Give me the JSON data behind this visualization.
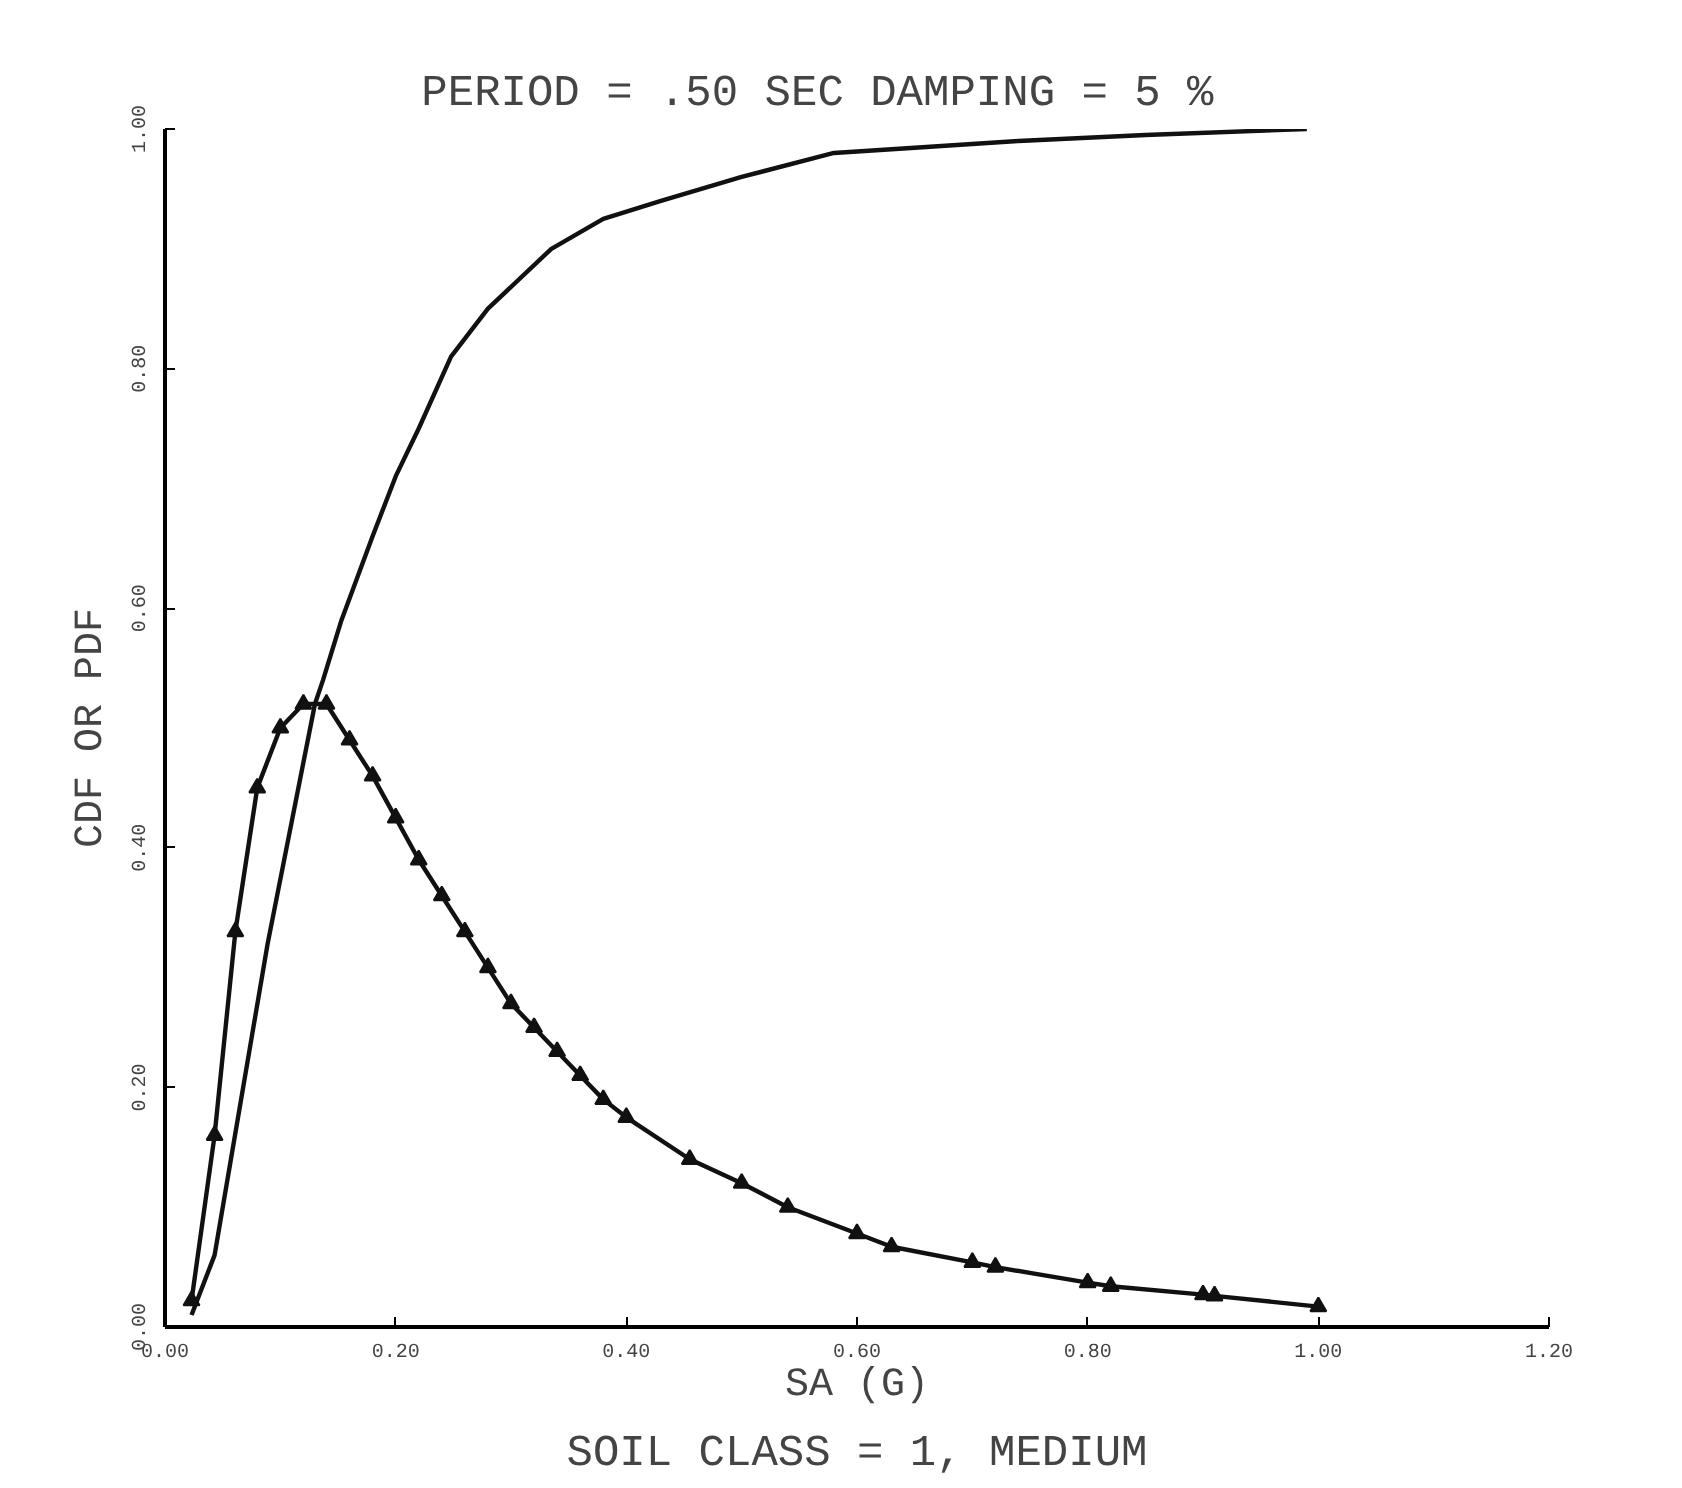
{
  "chart_data": {
    "type": "line",
    "title": "PERIOD = .50 SEC   DAMPING =  5 %",
    "xlabel": "SA (G)",
    "ylabel": "CDF OR PDF",
    "annotations": [
      "SOIL CLASS = 1, MEDIUM"
    ],
    "xlim": [
      0,
      1.2
    ],
    "ylim": [
      0,
      1
    ],
    "xticks": [
      {
        "value": 0,
        "label": "0.00"
      },
      {
        "value": 0.2,
        "label": "0.20"
      },
      {
        "value": 0.4,
        "label": "0.40"
      },
      {
        "value": 0.6,
        "label": "0.60"
      },
      {
        "value": 0.8,
        "label": "0.80"
      },
      {
        "value": 1.0,
        "label": "1.00"
      },
      {
        "value": 1.2,
        "label": "1.20"
      }
    ],
    "yticks": [
      {
        "value": 0,
        "label": "0.00"
      },
      {
        "value": 0.2,
        "label": "0.20"
      },
      {
        "value": 0.4,
        "label": "0.40"
      },
      {
        "value": 0.6,
        "label": "0.60"
      },
      {
        "value": 0.8,
        "label": "0.80"
      },
      {
        "value": 1.0,
        "label": "1.00"
      }
    ],
    "grid": false,
    "series": [
      {
        "color": "#111111",
        "marker": "none",
        "x": [
          0.023,
          0.043,
          0.066,
          0.089,
          0.13,
          0.137,
          0.153,
          0.18,
          0.2,
          0.22,
          0.248,
          0.28,
          0.335,
          0.38,
          0.43,
          0.5,
          0.58,
          0.66,
          0.74,
          0.85,
          0.99
        ],
        "values": [
          0.01,
          0.06,
          0.19,
          0.32,
          0.52,
          0.54,
          0.59,
          0.66,
          0.71,
          0.75,
          0.81,
          0.85,
          0.9,
          0.925,
          0.94,
          0.96,
          0.98,
          0.985,
          0.99,
          0.995,
          1.0
        ]
      },
      {
        "color": "#111111",
        "marker": "triangle",
        "x": [
          0.023,
          0.043,
          0.061,
          0.08,
          0.1,
          0.12,
          0.14,
          0.16,
          0.18,
          0.2,
          0.22,
          0.24,
          0.26,
          0.28,
          0.3,
          0.32,
          0.34,
          0.36,
          0.38,
          0.4,
          0.455,
          0.5,
          0.54,
          0.6,
          0.63,
          0.7,
          0.72,
          0.8,
          0.82,
          0.9,
          0.91,
          1.0
        ],
        "values": [
          0.022,
          0.16,
          0.33,
          0.45,
          0.5,
          0.52,
          0.52,
          0.49,
          0.46,
          0.425,
          0.39,
          0.36,
          0.33,
          0.3,
          0.27,
          0.25,
          0.23,
          0.21,
          0.19,
          0.175,
          0.14,
          0.12,
          0.1,
          0.078,
          0.067,
          0.054,
          0.05,
          0.037,
          0.034,
          0.027,
          0.026,
          0.017
        ]
      }
    ]
  }
}
